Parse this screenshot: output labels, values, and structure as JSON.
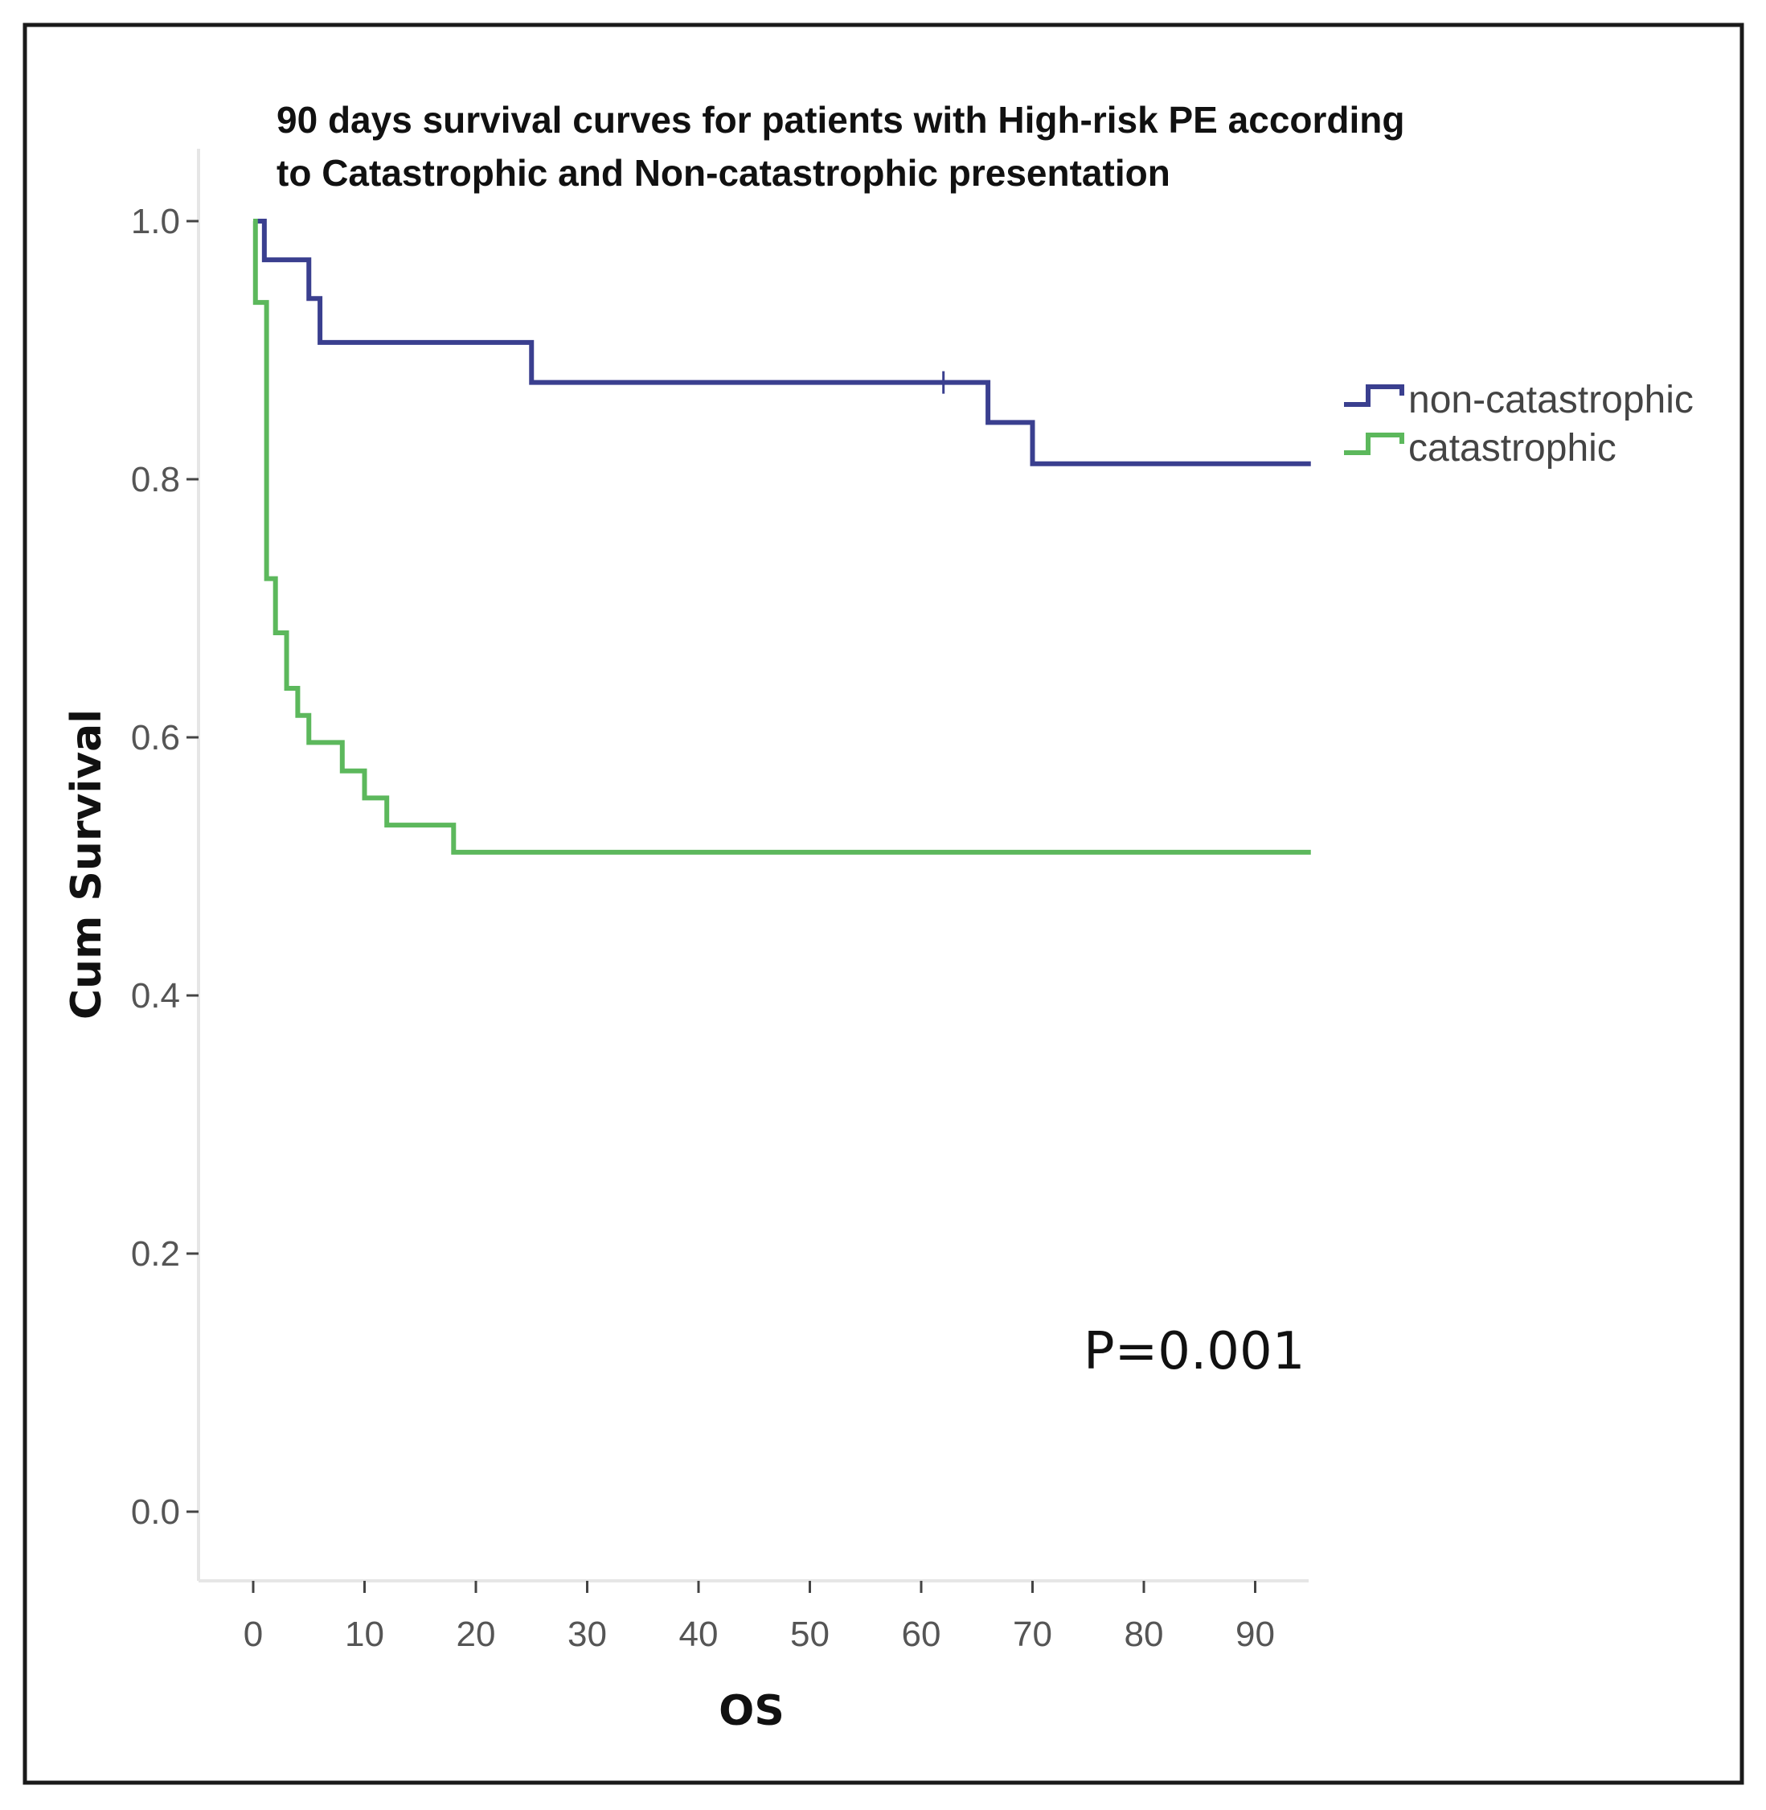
{
  "chart_data": {
    "type": "line",
    "subtype": "kaplan-meier step",
    "title_lines": [
      "90 days survival curves for patients with High-risk PE according",
      "to Catastrophic and Non-catastrophic presentation"
    ],
    "xlabel": "OS",
    "ylabel": "Cum Survival",
    "xlim": [
      -5,
      95
    ],
    "ylim": [
      -0.05,
      1.05
    ],
    "x_ticks": [
      "0",
      "10",
      "20",
      "30",
      "40",
      "50",
      "60",
      "70",
      "80",
      "90"
    ],
    "y_ticks": [
      "0.0",
      "0.2",
      "0.4",
      "0.6",
      "0.8",
      "1.0"
    ],
    "annotation": "P=0.001",
    "legend_position": "right",
    "series": [
      {
        "name": "non-catastrophic",
        "color": "#3a3f8f",
        "steps": [
          [
            0,
            1.0
          ],
          [
            1,
            0.97
          ],
          [
            5,
            0.94
          ],
          [
            6,
            0.906
          ],
          [
            25,
            0.875
          ],
          [
            66,
            0.844
          ],
          [
            70,
            0.812
          ],
          [
            95,
            0.812
          ]
        ],
        "censored": [
          62
        ]
      },
      {
        "name": "catastrophic",
        "color": "#5cb85c",
        "steps": [
          [
            0,
            1.0
          ],
          [
            0.2,
            0.937
          ],
          [
            1.2,
            0.723
          ],
          [
            2,
            0.681
          ],
          [
            3,
            0.638
          ],
          [
            4,
            0.617
          ],
          [
            5,
            0.596
          ],
          [
            8,
            0.574
          ],
          [
            10,
            0.553
          ],
          [
            12,
            0.532
          ],
          [
            18,
            0.511
          ],
          [
            95,
            0.511
          ]
        ],
        "censored": []
      }
    ]
  }
}
